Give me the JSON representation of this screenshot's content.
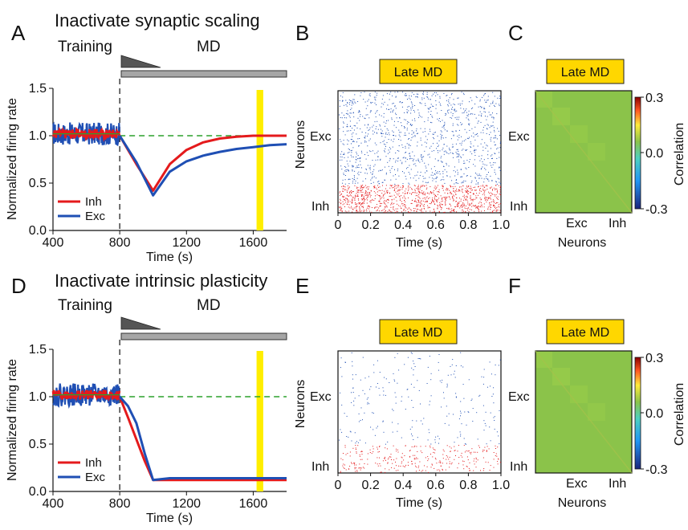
{
  "panel_labels": [
    "A",
    "B",
    "C",
    "D",
    "E",
    "F"
  ],
  "rows": [
    {
      "title": "Inactivate synaptic scaling",
      "phase_training": "Training",
      "phase_md": "MD",
      "late_md_label": "Late MD",
      "colorbar_label": "Correlation",
      "colorbar_ticks": [
        "0.3",
        "0.0",
        "-0.3"
      ],
      "raster_ylabel": "Neurons",
      "raster_xlabel": "Time (s)",
      "raster_yticks": [
        "Exc",
        "Inh"
      ],
      "raster_xticks": [
        "0",
        "0.2",
        "0.4",
        "0.6",
        "0.8",
        "1.0"
      ],
      "corr_xticks": [
        "Exc",
        "Inh"
      ],
      "corr_yticks": [
        "Exc",
        "Inh"
      ],
      "corr_xlabel": "Neurons",
      "raster_exc_density": 0.85,
      "raster_inh_density": 1.0
    },
    {
      "title": "Inactivate intrinsic plasticity",
      "phase_training": "Training",
      "phase_md": "MD",
      "late_md_label": "Late MD",
      "colorbar_label": "Correlation",
      "colorbar_ticks": [
        "0.3",
        "0.0",
        "-0.3"
      ],
      "raster_ylabel": "Neurons",
      "raster_xlabel": "Time (s)",
      "raster_yticks": [
        "Exc",
        "Inh"
      ],
      "raster_xticks": [
        "0",
        "0.2",
        "0.4",
        "0.6",
        "0.8",
        "1.0"
      ],
      "corr_xticks": [
        "Exc",
        "Inh"
      ],
      "corr_yticks": [
        "Exc",
        "Inh"
      ],
      "corr_xlabel": "Neurons",
      "raster_exc_density": 0.18,
      "raster_inh_density": 0.3
    }
  ],
  "colors": {
    "inh": "#e41a1c",
    "exc": "#1f4fb4",
    "target": "#2ca02c",
    "highlight": "#ffee00",
    "badge": "#ffd700",
    "bar": "#a6a6a6"
  },
  "chart_data": [
    {
      "type": "line",
      "xlabel": "Time (s)",
      "ylabel": "Normalized firing rate",
      "xlim": [
        400,
        1800
      ],
      "ylim": [
        0,
        1.5
      ],
      "xticks": [
        400,
        800,
        1200,
        1600
      ],
      "yticks": [
        0.0,
        0.5,
        1.0,
        1.5
      ],
      "target_level": 1.0,
      "md_onset": 800,
      "highlight_window": [
        1620,
        1660
      ],
      "series": [
        {
          "name": "Inh",
          "x": [
            800,
            900,
            1000,
            1100,
            1200,
            1300,
            1400,
            1500,
            1600,
            1700,
            1800
          ],
          "values": [
            1.0,
            0.7,
            0.42,
            0.7,
            0.85,
            0.93,
            0.97,
            0.99,
            1.0,
            1.0,
            1.0
          ]
        },
        {
          "name": "Exc",
          "x": [
            800,
            900,
            1000,
            1100,
            1200,
            1300,
            1400,
            1500,
            1600,
            1700,
            1800
          ],
          "values": [
            1.0,
            0.72,
            0.37,
            0.62,
            0.73,
            0.79,
            0.83,
            0.86,
            0.88,
            0.9,
            0.91
          ]
        }
      ]
    },
    {
      "type": "line",
      "xlabel": "Time (s)",
      "ylabel": "Normalized firing rate",
      "xlim": [
        400,
        1800
      ],
      "ylim": [
        0,
        1.5
      ],
      "xticks": [
        400,
        800,
        1200,
        1600
      ],
      "yticks": [
        0.0,
        0.5,
        1.0,
        1.5
      ],
      "target_level": 1.0,
      "md_onset": 800,
      "highlight_window": [
        1620,
        1660
      ],
      "series": [
        {
          "name": "Inh",
          "x": [
            800,
            850,
            900,
            950,
            1000,
            1100,
            1200,
            1400,
            1600,
            1800
          ],
          "values": [
            1.0,
            0.78,
            0.55,
            0.32,
            0.12,
            0.12,
            0.12,
            0.12,
            0.12,
            0.12
          ]
        },
        {
          "name": "Exc",
          "x": [
            800,
            850,
            900,
            950,
            1000,
            1100,
            1200,
            1400,
            1600,
            1800
          ],
          "values": [
            1.0,
            0.9,
            0.72,
            0.4,
            0.12,
            0.14,
            0.14,
            0.14,
            0.14,
            0.14
          ]
        }
      ]
    }
  ]
}
